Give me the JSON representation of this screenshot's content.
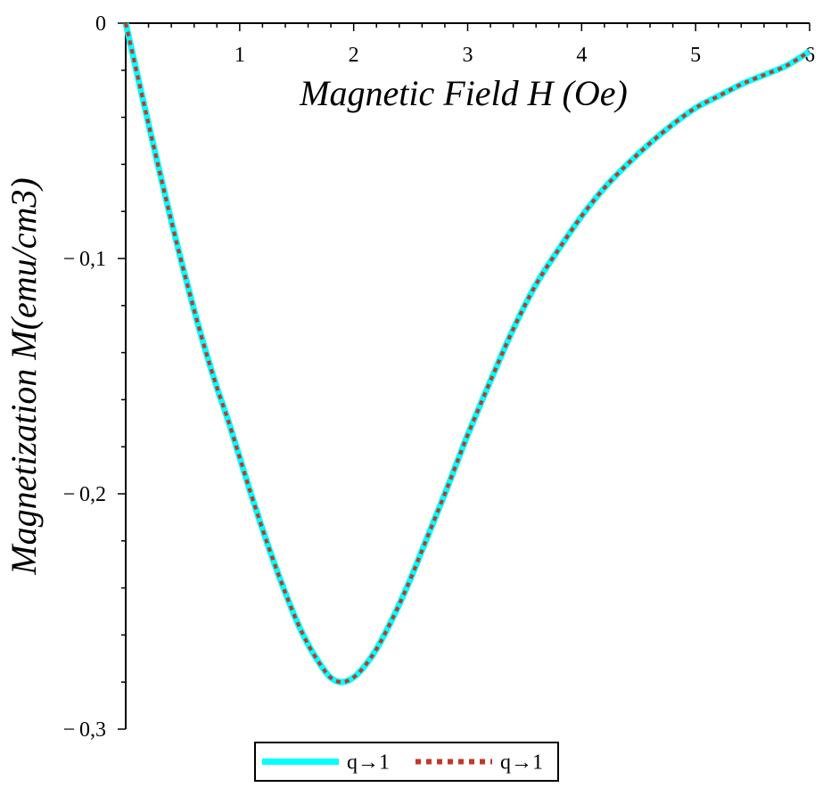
{
  "chart_data": {
    "type": "line",
    "xlabel": "Magnetic Field H (Oe)",
    "ylabel": "Magnetization M(emu/cm3)",
    "xlim": [
      0,
      6
    ],
    "ylim": [
      -0.3,
      0
    ],
    "x_axis_position": "top",
    "grid": false,
    "legend_position": "bottom-center",
    "x_ticks": [
      {
        "value": 1,
        "label": "1"
      },
      {
        "value": 2,
        "label": "2"
      },
      {
        "value": 3,
        "label": "3"
      },
      {
        "value": 4,
        "label": "4"
      },
      {
        "value": 5,
        "label": "5"
      },
      {
        "value": 6,
        "label": "6"
      }
    ],
    "y_ticks": [
      {
        "value": 0,
        "label": "0"
      },
      {
        "value": -0.1,
        "label": "-0,1"
      },
      {
        "value": -0.2,
        "label": "-0,2"
      },
      {
        "value": -0.3,
        "label": "-0,3"
      }
    ],
    "series": [
      {
        "name": "q→1",
        "color": "#00ffff",
        "style": "solid",
        "x": [
          0,
          0.1,
          0.2,
          0.3,
          0.4,
          0.5,
          0.6,
          0.7,
          0.8,
          0.9,
          1.0,
          1.1,
          1.2,
          1.3,
          1.4,
          1.5,
          1.6,
          1.7,
          1.8,
          1.9,
          2.0,
          2.1,
          2.2,
          2.3,
          2.4,
          2.5,
          2.6,
          2.7,
          2.8,
          2.9,
          3.0,
          3.2,
          3.4,
          3.6,
          3.8,
          4.0,
          4.2,
          4.4,
          4.6,
          4.8,
          5.0,
          5.2,
          5.4,
          5.6,
          5.8,
          6.0
        ],
        "y": [
          0,
          -0.0215,
          -0.0428,
          -0.0637,
          -0.084,
          -0.1035,
          -0.1219,
          -0.1391,
          -0.1548,
          -0.169,
          -0.1846,
          -0.2002,
          -0.215,
          -0.229,
          -0.242,
          -0.254,
          -0.264,
          -0.272,
          -0.2782,
          -0.28,
          -0.278,
          -0.273,
          -0.266,
          -0.257,
          -0.247,
          -0.236,
          -0.224,
          -0.212,
          -0.2,
          -0.1875,
          -0.175,
          -0.152,
          -0.13,
          -0.111,
          -0.096,
          -0.082,
          -0.07,
          -0.06,
          -0.051,
          -0.043,
          -0.036,
          -0.031,
          -0.026,
          -0.022,
          -0.018,
          -0.012
        ]
      },
      {
        "name": "q→1",
        "color": "#c0392b",
        "style": "dotted",
        "x": [
          0,
          0.1,
          0.2,
          0.3,
          0.4,
          0.5,
          0.6,
          0.7,
          0.8,
          0.9,
          1.0,
          1.1,
          1.2,
          1.3,
          1.4,
          1.5,
          1.6,
          1.7,
          1.8,
          1.9,
          2.0,
          2.1,
          2.2,
          2.3,
          2.4,
          2.5,
          2.6,
          2.7,
          2.8,
          2.9,
          3.0,
          3.2,
          3.4,
          3.6,
          3.8,
          4.0,
          4.2,
          4.4,
          4.6,
          4.8,
          5.0,
          5.2,
          5.4,
          5.6,
          5.8,
          6.0
        ],
        "y": [
          0,
          -0.0215,
          -0.0428,
          -0.0637,
          -0.084,
          -0.1035,
          -0.1219,
          -0.1391,
          -0.1548,
          -0.169,
          -0.1846,
          -0.2002,
          -0.215,
          -0.229,
          -0.242,
          -0.254,
          -0.264,
          -0.272,
          -0.2782,
          -0.28,
          -0.278,
          -0.273,
          -0.266,
          -0.257,
          -0.247,
          -0.236,
          -0.224,
          -0.212,
          -0.2,
          -0.1875,
          -0.175,
          -0.152,
          -0.13,
          -0.111,
          -0.096,
          -0.082,
          -0.07,
          -0.06,
          -0.051,
          -0.043,
          -0.036,
          -0.031,
          -0.026,
          -0.022,
          -0.018,
          -0.012
        ]
      }
    ]
  }
}
